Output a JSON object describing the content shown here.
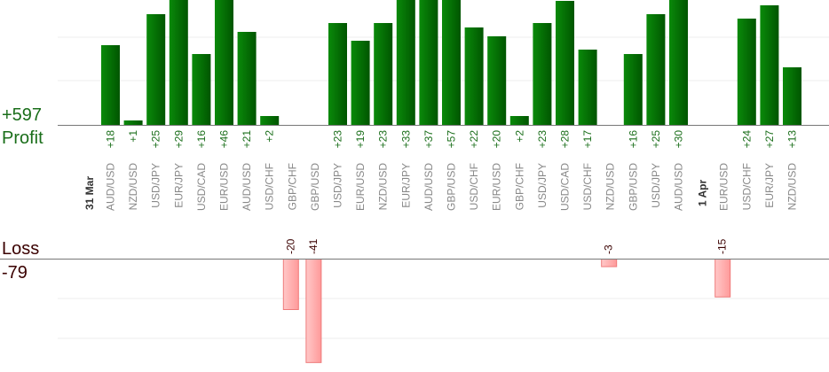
{
  "summary": {
    "profit_total": "+597",
    "profit_label": "Profit",
    "loss_label": "Loss",
    "loss_total": "-79"
  },
  "colors": {
    "profit_dark": "#005500",
    "profit_light": "#0a8a0a",
    "loss_fill": "#ffb8b8",
    "loss_edge": "#ee7a7a",
    "profit_text": "#1a6e1a",
    "loss_text": "#3a0000",
    "pair_text": "#888888",
    "date_text": "#333333"
  },
  "chart_data": {
    "type": "bar",
    "grid": true,
    "profit_axis_range": [
      0,
      29
    ],
    "loss_axis_range": [
      -41,
      0
    ],
    "date_markers": [
      {
        "label": "31 Mar",
        "before_index": 0
      },
      {
        "label": "1 Apr",
        "before_index": 26
      }
    ],
    "trades": [
      {
        "pair": "AUD/USD",
        "value": 18,
        "label": "+18"
      },
      {
        "pair": "NZD/USD",
        "value": 1,
        "label": "+1"
      },
      {
        "pair": "USD/JPY",
        "value": 25,
        "label": "+25"
      },
      {
        "pair": "EUR/JPY",
        "value": 29,
        "label": "+29"
      },
      {
        "pair": "USD/CAD",
        "value": 16,
        "label": "+16"
      },
      {
        "pair": "EUR/USD",
        "value": 46,
        "label": "+46"
      },
      {
        "pair": "AUD/USD",
        "value": 21,
        "label": "+21"
      },
      {
        "pair": "USD/CHF",
        "value": 2,
        "label": "+2"
      },
      {
        "pair": "GBP/CHF",
        "value": -20,
        "label": "-20"
      },
      {
        "pair": "GBP/USD",
        "value": -41,
        "label": "-41"
      },
      {
        "pair": "USD/JPY",
        "value": 23,
        "label": "+23"
      },
      {
        "pair": "EUR/USD",
        "value": 19,
        "label": "+19"
      },
      {
        "pair": "NZD/USD",
        "value": 23,
        "label": "+23"
      },
      {
        "pair": "EUR/JPY",
        "value": 33,
        "label": "+33"
      },
      {
        "pair": "AUD/USD",
        "value": 37,
        "label": "+37"
      },
      {
        "pair": "GBP/USD",
        "value": 57,
        "label": "+57"
      },
      {
        "pair": "USD/CHF",
        "value": 22,
        "label": "+22"
      },
      {
        "pair": "EUR/USD",
        "value": 20,
        "label": "+20"
      },
      {
        "pair": "GBP/CHF",
        "value": 2,
        "label": "+2"
      },
      {
        "pair": "USD/JPY",
        "value": 23,
        "label": "+23"
      },
      {
        "pair": "USD/CAD",
        "value": 28,
        "label": "+28"
      },
      {
        "pair": "USD/CHF",
        "value": 17,
        "label": "+17"
      },
      {
        "pair": "NZD/USD",
        "value": -3,
        "label": "-3"
      },
      {
        "pair": "GBP/USD",
        "value": 16,
        "label": "+16"
      },
      {
        "pair": "USD/JPY",
        "value": 25,
        "label": "+25"
      },
      {
        "pair": "AUD/USD",
        "value": 30,
        "label": "+30"
      },
      {
        "pair": "EUR/USD",
        "value": -15,
        "label": "-15"
      },
      {
        "pair": "USD/CHF",
        "value": 24,
        "label": "+24"
      },
      {
        "pair": "EUR/JPY",
        "value": 27,
        "label": "+27"
      },
      {
        "pair": "NZD/USD",
        "value": 13,
        "label": "+13"
      }
    ]
  }
}
